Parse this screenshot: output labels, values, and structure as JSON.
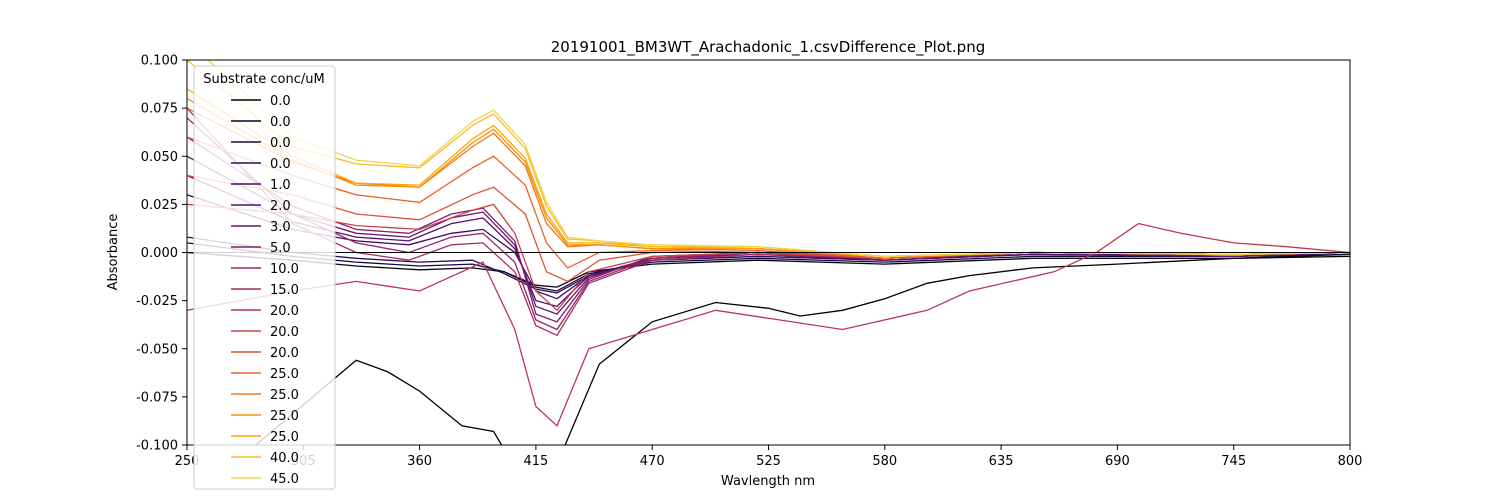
{
  "chart_data": {
    "type": "line",
    "title": "20191001_BM3WT_Arachadonic_1.csvDifference_Plot.png",
    "xlabel": "Wavlength nm",
    "ylabel": "Absorbance",
    "xlim": [
      250,
      800
    ],
    "ylim": [
      -0.1,
      0.1
    ],
    "x_ticks": [
      "250",
      "305",
      "360",
      "415",
      "470",
      "525",
      "580",
      "635",
      "690",
      "745",
      "800"
    ],
    "y_ticks": [
      "-0.100",
      "-0.075",
      "-0.050",
      "-0.025",
      "0.000",
      "0.025",
      "0.050",
      "0.075",
      "0.100"
    ],
    "grid": false,
    "reference_line_y": 0,
    "legend": {
      "title": "Substrate conc/uM",
      "placement": "upper-left"
    },
    "series": [
      {
        "name": "0.0",
        "color": "#000004",
        "x": [
          250,
          330,
          345,
          360,
          380,
          395,
          415,
          425,
          445,
          470,
          500,
          525,
          540,
          560,
          580,
          600,
          620,
          650,
          690,
          745,
          800
        ],
        "y": [
          -0.13,
          -0.056,
          -0.062,
          -0.072,
          -0.09,
          -0.093,
          -0.13,
          -0.11,
          -0.058,
          -0.036,
          -0.026,
          -0.029,
          -0.033,
          -0.03,
          -0.024,
          -0.016,
          -0.012,
          -0.008,
          -0.006,
          -0.003,
          -0.002
        ]
      },
      {
        "name": "0.0",
        "color": "#07051b",
        "x": [
          250,
          300,
          330,
          360,
          385,
          400,
          415,
          425,
          440,
          470,
          520,
          580,
          650,
          745,
          800
        ],
        "y": [
          0.0,
          -0.004,
          -0.007,
          -0.009,
          -0.008,
          -0.01,
          -0.017,
          -0.018,
          -0.01,
          -0.006,
          -0.004,
          -0.006,
          -0.003,
          -0.003,
          -0.001
        ]
      },
      {
        "name": "0.0",
        "color": "#160b39",
        "x": [
          250,
          300,
          330,
          360,
          385,
          400,
          415,
          425,
          440,
          470,
          520,
          580,
          650,
          745,
          800
        ],
        "y": [
          0.005,
          -0.002,
          -0.005,
          -0.007,
          -0.006,
          -0.01,
          -0.018,
          -0.02,
          -0.011,
          -0.005,
          -0.003,
          -0.005,
          -0.002,
          -0.002,
          -0.001
        ]
      },
      {
        "name": "0.0",
        "color": "#2a0b54",
        "x": [
          250,
          300,
          330,
          360,
          385,
          400,
          415,
          425,
          440,
          470,
          520,
          580,
          650,
          745,
          800
        ],
        "y": [
          0.008,
          0.0,
          -0.003,
          -0.005,
          -0.004,
          -0.011,
          -0.019,
          -0.021,
          -0.012,
          -0.004,
          -0.002,
          -0.004,
          -0.001,
          -0.002,
          0.0
        ]
      },
      {
        "name": "1.0",
        "color": "#400a67",
        "x": [
          250,
          300,
          330,
          355,
          375,
          390,
          405,
          415,
          425,
          440,
          470,
          520,
          580,
          650,
          745,
          800
        ],
        "y": [
          0.03,
          0.012,
          0.006,
          0.004,
          0.01,
          0.012,
          0.0,
          -0.02,
          -0.024,
          -0.012,
          -0.004,
          -0.002,
          -0.004,
          -0.001,
          -0.002,
          0.0
        ]
      },
      {
        "name": "2.0",
        "color": "#550f6d",
        "x": [
          250,
          300,
          330,
          355,
          375,
          390,
          405,
          415,
          425,
          440,
          470,
          520,
          580,
          650,
          745,
          800
        ],
        "y": [
          0.04,
          0.016,
          0.008,
          0.006,
          0.015,
          0.018,
          0.002,
          -0.025,
          -0.028,
          -0.012,
          -0.003,
          -0.001,
          -0.004,
          -0.001,
          -0.002,
          0.0
        ]
      },
      {
        "name": "3.0",
        "color": "#6a176e",
        "x": [
          250,
          300,
          330,
          355,
          375,
          390,
          405,
          415,
          425,
          440,
          470,
          520,
          580,
          650,
          745,
          800
        ],
        "y": [
          0.05,
          0.02,
          0.01,
          0.008,
          0.018,
          0.021,
          0.004,
          -0.028,
          -0.032,
          -0.013,
          -0.003,
          0.0,
          -0.004,
          0.0,
          -0.002,
          0.0
        ]
      },
      {
        "name": "5.0",
        "color": "#7f1e6c",
        "x": [
          250,
          300,
          330,
          355,
          375,
          390,
          405,
          415,
          425,
          440,
          470,
          520,
          580,
          650,
          745,
          800
        ],
        "y": [
          0.06,
          0.024,
          0.012,
          0.01,
          0.02,
          0.023,
          0.006,
          -0.032,
          -0.036,
          -0.014,
          -0.002,
          0.0,
          -0.003,
          0.0,
          -0.001,
          0.0
        ]
      },
      {
        "name": "10.0",
        "color": "#932667",
        "x": [
          250,
          300,
          330,
          355,
          375,
          390,
          405,
          415,
          425,
          440,
          470,
          520,
          580,
          650,
          745,
          800
        ],
        "y": [
          0.07,
          0.02,
          0.005,
          0.0,
          0.008,
          0.01,
          -0.005,
          -0.035,
          -0.04,
          -0.015,
          -0.003,
          0.0,
          -0.003,
          0.0,
          -0.001,
          0.0
        ]
      },
      {
        "name": "15.0",
        "color": "#a72d5f",
        "x": [
          250,
          300,
          330,
          355,
          375,
          390,
          405,
          415,
          425,
          440,
          470,
          520,
          580,
          650,
          745,
          800
        ],
        "y": [
          0.075,
          0.015,
          0.0,
          -0.004,
          0.004,
          0.005,
          -0.01,
          -0.038,
          -0.043,
          -0.016,
          -0.004,
          -0.001,
          -0.003,
          0.0,
          -0.001,
          0.0
        ]
      },
      {
        "name": "20.0",
        "color": "#bc3754",
        "x": [
          250,
          300,
          330,
          360,
          390,
          405,
          415,
          425,
          440,
          470,
          500,
          530,
          560,
          580,
          600,
          620,
          640,
          660,
          680,
          700,
          720,
          745,
          770,
          800
        ],
        "y": [
          -0.03,
          -0.02,
          -0.015,
          -0.02,
          -0.005,
          -0.04,
          -0.08,
          -0.09,
          -0.05,
          -0.04,
          -0.03,
          -0.035,
          -0.04,
          -0.035,
          -0.03,
          -0.02,
          -0.015,
          -0.01,
          0.0,
          0.015,
          0.01,
          0.005,
          0.003,
          0.0
        ]
      },
      {
        "name": "20.0",
        "color": "#cc4248",
        "x": [
          250,
          300,
          330,
          360,
          385,
          395,
          405,
          415,
          425,
          440,
          470,
          520,
          580,
          650,
          745,
          800
        ],
        "y": [
          0.025,
          0.02,
          0.014,
          0.012,
          0.022,
          0.025,
          0.01,
          -0.02,
          -0.03,
          -0.01,
          -0.002,
          0.0,
          -0.003,
          0.0,
          -0.001,
          0.0
        ]
      },
      {
        "name": "20.0",
        "color": "#dd513a",
        "x": [
          250,
          300,
          330,
          360,
          385,
          395,
          410,
          420,
          430,
          445,
          470,
          520,
          580,
          650,
          745,
          800
        ],
        "y": [
          0.04,
          0.03,
          0.02,
          0.017,
          0.03,
          0.034,
          0.02,
          -0.01,
          -0.015,
          -0.004,
          0.0,
          0.001,
          -0.003,
          0.0,
          -0.001,
          0.0
        ]
      },
      {
        "name": "25.0",
        "color": "#ea632a",
        "x": [
          250,
          300,
          330,
          360,
          385,
          395,
          410,
          420,
          430,
          445,
          470,
          520,
          580,
          650,
          745,
          800
        ],
        "y": [
          0.06,
          0.04,
          0.03,
          0.026,
          0.044,
          0.05,
          0.035,
          0.005,
          -0.008,
          0.0,
          0.001,
          0.002,
          -0.003,
          0.0,
          -0.001,
          0.0
        ]
      },
      {
        "name": "25.0",
        "color": "#f37819",
        "x": [
          250,
          300,
          330,
          360,
          385,
          395,
          410,
          420,
          430,
          445,
          470,
          520,
          580,
          650,
          745,
          800
        ],
        "y": [
          0.075,
          0.047,
          0.036,
          0.034,
          0.055,
          0.062,
          0.045,
          0.015,
          0.003,
          0.004,
          0.002,
          0.002,
          -0.002,
          0.0,
          -0.001,
          0.0
        ]
      },
      {
        "name": "25.0",
        "color": "#f98e09",
        "x": [
          250,
          300,
          330,
          360,
          385,
          395,
          410,
          420,
          430,
          445,
          470,
          520,
          580,
          650,
          745,
          800
        ],
        "y": [
          0.08,
          0.048,
          0.035,
          0.034,
          0.057,
          0.064,
          0.047,
          0.018,
          0.004,
          0.004,
          0.002,
          0.002,
          -0.002,
          0.0,
          -0.001,
          0.0
        ]
      },
      {
        "name": "25.0",
        "color": "#fca50a",
        "x": [
          250,
          300,
          330,
          360,
          385,
          395,
          410,
          420,
          430,
          445,
          470,
          520,
          580,
          650,
          745,
          800
        ],
        "y": [
          0.085,
          0.05,
          0.036,
          0.035,
          0.059,
          0.066,
          0.049,
          0.02,
          0.005,
          0.005,
          0.003,
          0.002,
          -0.002,
          0.0,
          -0.001,
          0.0
        ]
      },
      {
        "name": "40.0",
        "color": "#f8bd25",
        "x": [
          250,
          300,
          330,
          360,
          385,
          395,
          410,
          420,
          430,
          445,
          470,
          520,
          580,
          650,
          745,
          800
        ],
        "y": [
          0.1,
          0.055,
          0.046,
          0.044,
          0.066,
          0.072,
          0.054,
          0.024,
          0.007,
          0.006,
          0.003,
          0.003,
          -0.002,
          0.0,
          -0.001,
          0.0
        ]
      },
      {
        "name": "45.0",
        "color": "#f2d44b",
        "x": [
          250,
          300,
          330,
          360,
          385,
          395,
          410,
          420,
          430,
          445,
          470,
          520,
          580,
          650,
          745,
          800
        ],
        "y": [
          0.11,
          0.06,
          0.048,
          0.045,
          0.068,
          0.074,
          0.056,
          0.026,
          0.008,
          0.006,
          0.004,
          0.003,
          -0.002,
          0.0,
          -0.001,
          0.0
        ]
      }
    ]
  }
}
